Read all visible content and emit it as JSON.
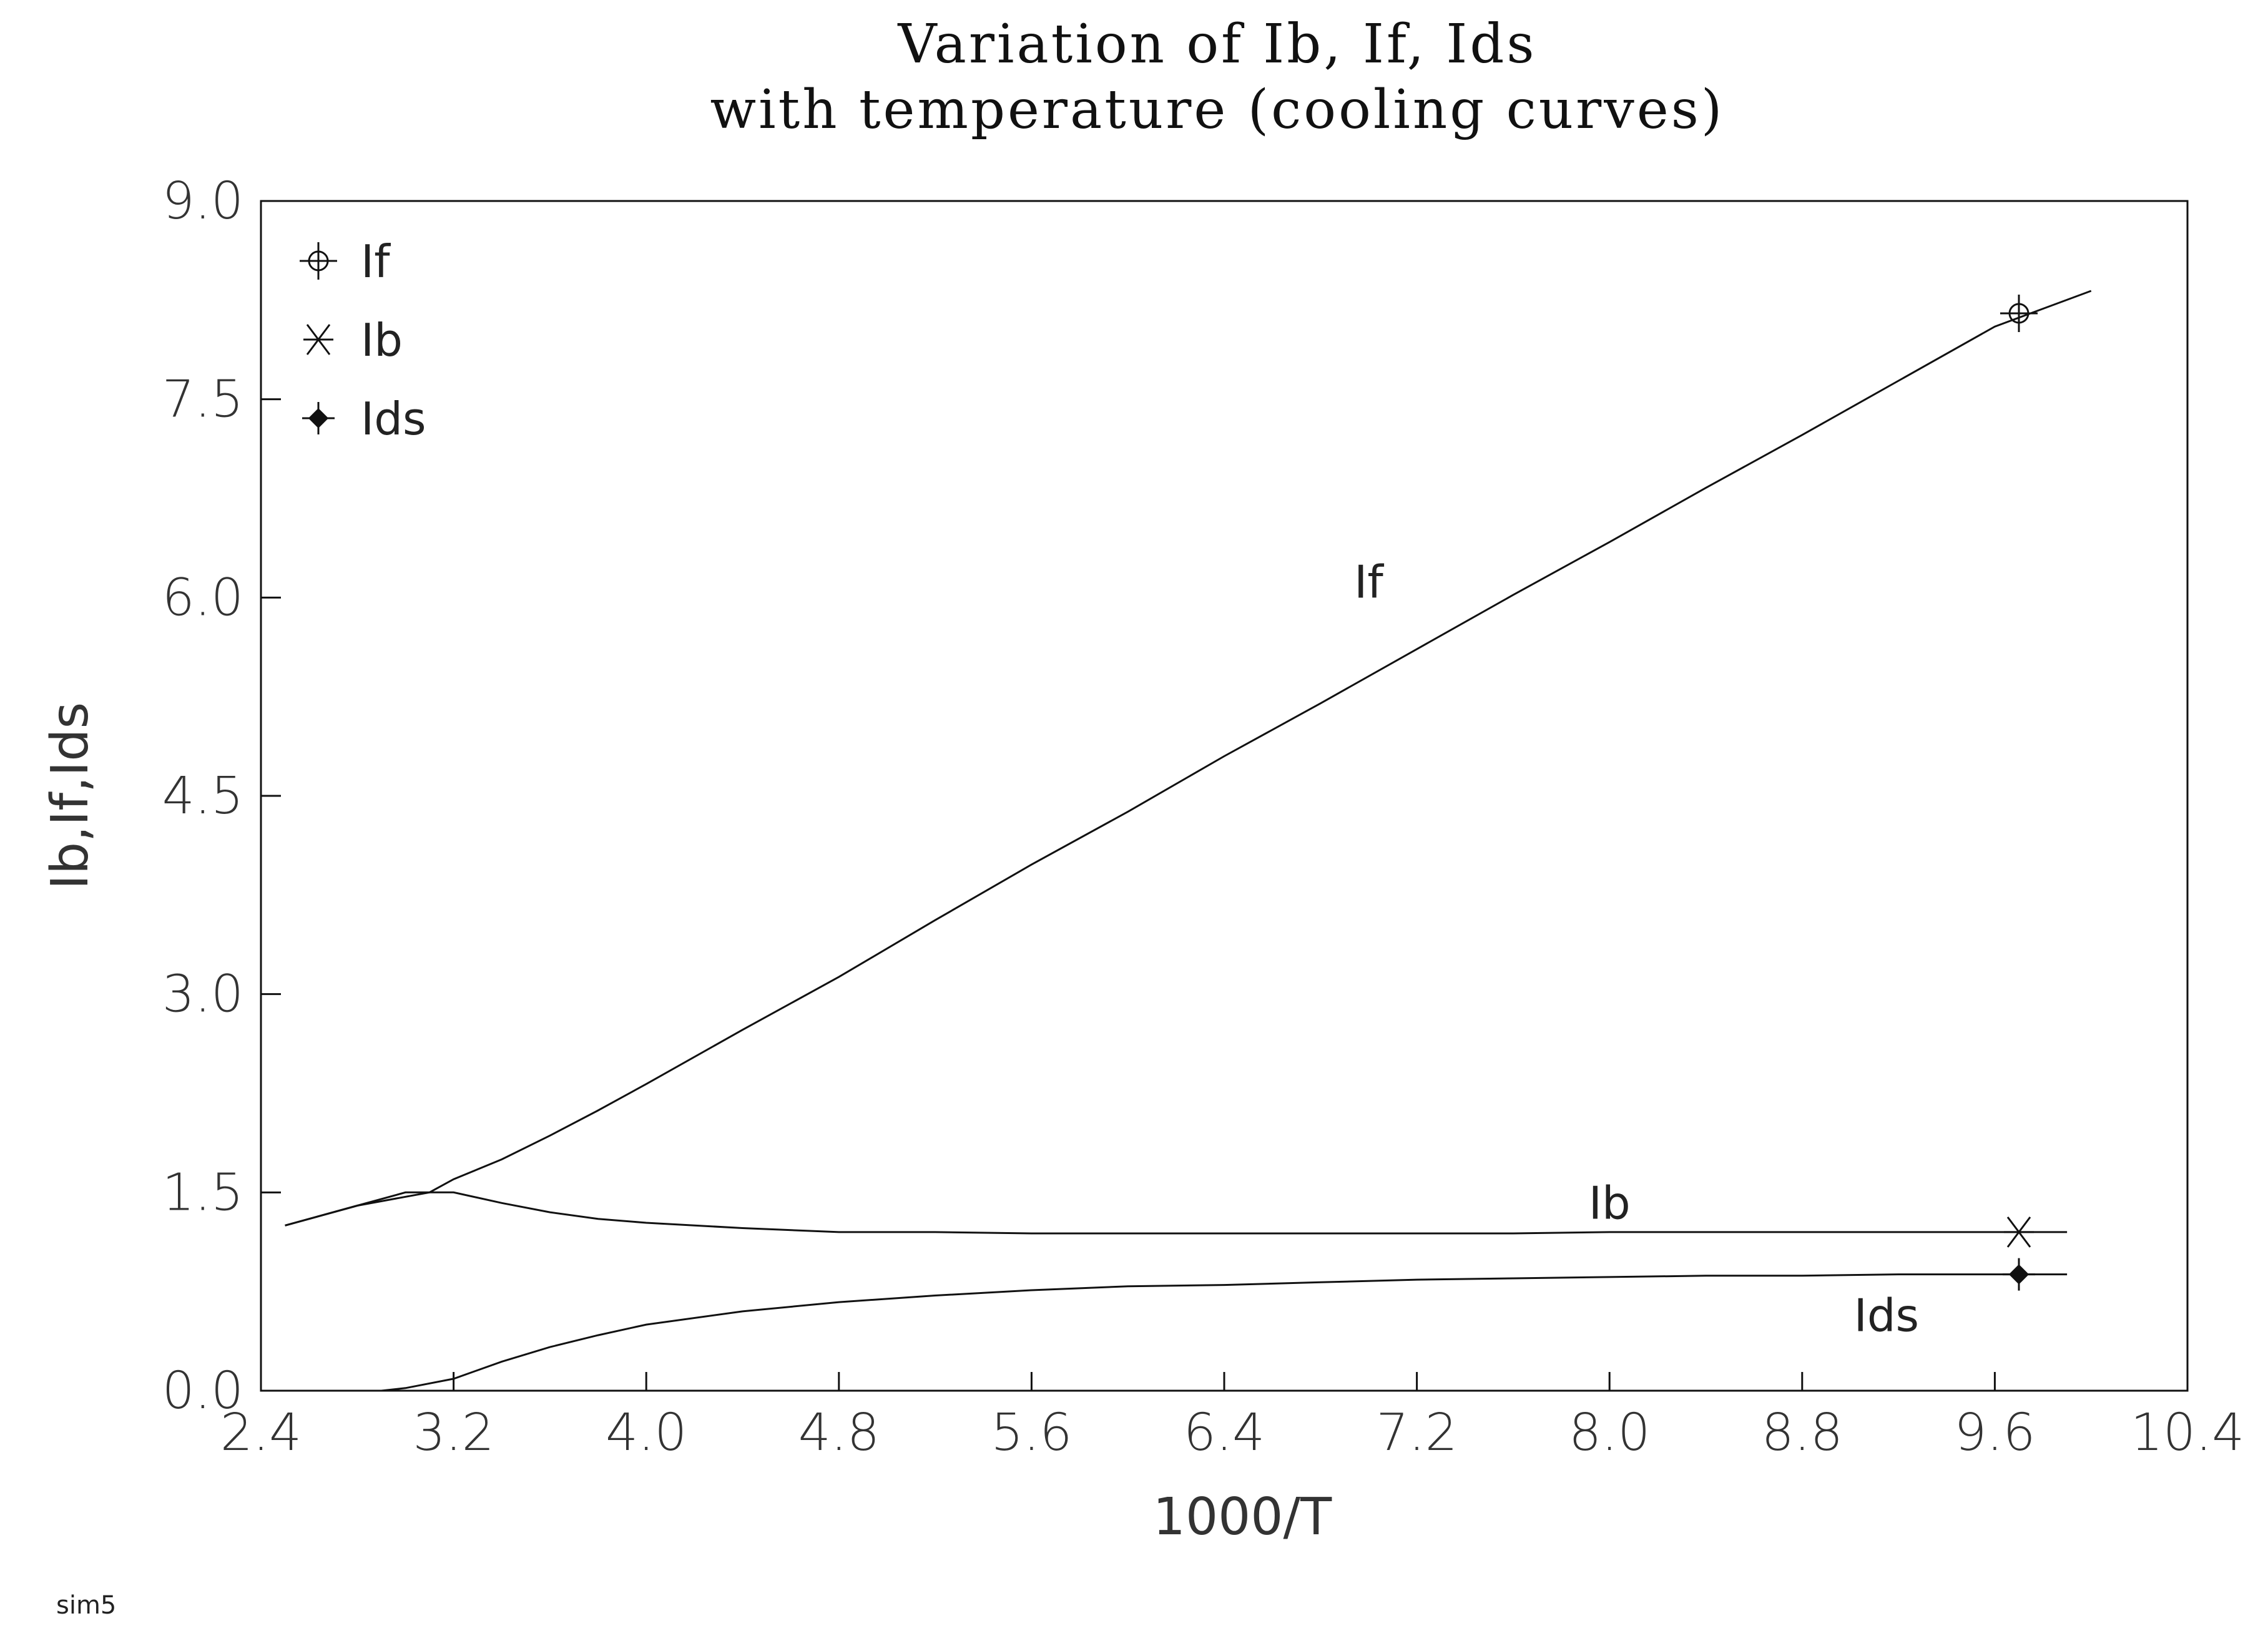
{
  "chart_data": {
    "type": "line",
    "title": "Variation of Ib, If, Ids",
    "subtitle": "with temperature (cooling curves)",
    "xlabel": "1000/T",
    "ylabel": "Ib,If,Ids",
    "xlim": [
      2.4,
      10.4
    ],
    "ylim": [
      0.0,
      9.0
    ],
    "xticks": [
      "2.4",
      "3.2",
      "4.0",
      "4.8",
      "5.6",
      "6.4",
      "7.2",
      "8.0",
      "8.8",
      "9.6",
      "10.4"
    ],
    "yticks": [
      "0.0",
      "1.5",
      "3.0",
      "4.5",
      "6.0",
      "7.5",
      "9.0"
    ],
    "grid": false,
    "legend_position": "top-left",
    "series": [
      {
        "name": "If",
        "marker": "circle-cross",
        "marker_point": [
          9.7,
          8.15
        ],
        "curve_label_pos": [
          7.0,
          6.0
        ],
        "x": [
          2.5,
          2.8,
          3.1,
          3.2,
          3.4,
          3.6,
          3.8,
          4.0,
          4.4,
          4.8,
          5.2,
          5.6,
          6.0,
          6.4,
          6.8,
          7.2,
          7.6,
          8.0,
          8.4,
          8.8,
          9.2,
          9.6,
          10.0
        ],
        "y": [
          1.25,
          1.4,
          1.5,
          1.6,
          1.75,
          1.93,
          2.12,
          2.32,
          2.73,
          3.13,
          3.56,
          3.98,
          4.38,
          4.8,
          5.2,
          5.61,
          6.02,
          6.42,
          6.83,
          7.23,
          7.64,
          8.05,
          8.32
        ]
      },
      {
        "name": "Ib",
        "marker": "asterisk",
        "marker_point": [
          9.7,
          1.2
        ],
        "curve_label_pos": [
          8.0,
          1.3
        ],
        "x": [
          2.5,
          2.8,
          3.0,
          3.2,
          3.4,
          3.6,
          3.8,
          4.0,
          4.4,
          4.8,
          5.2,
          5.6,
          6.0,
          6.4,
          6.8,
          7.2,
          7.6,
          8.0,
          8.4,
          8.8,
          9.2,
          9.6,
          9.9
        ],
        "y": [
          1.25,
          1.4,
          1.5,
          1.5,
          1.42,
          1.35,
          1.3,
          1.27,
          1.23,
          1.2,
          1.2,
          1.19,
          1.19,
          1.19,
          1.19,
          1.19,
          1.19,
          1.2,
          1.2,
          1.2,
          1.2,
          1.2,
          1.2
        ]
      },
      {
        "name": "Ids",
        "marker": "filled-diamond",
        "marker_point": [
          9.7,
          0.88
        ],
        "curve_label_pos": [
          9.15,
          0.45
        ],
        "x": [
          2.9,
          3.0,
          3.2,
          3.4,
          3.6,
          3.8,
          4.0,
          4.4,
          4.8,
          5.2,
          5.6,
          6.0,
          6.4,
          6.8,
          7.2,
          7.6,
          8.0,
          8.4,
          8.8,
          9.2,
          9.6,
          9.9
        ],
        "y": [
          0.0,
          0.02,
          0.09,
          0.22,
          0.33,
          0.42,
          0.5,
          0.6,
          0.67,
          0.72,
          0.76,
          0.79,
          0.8,
          0.82,
          0.84,
          0.85,
          0.86,
          0.87,
          0.87,
          0.88,
          0.88,
          0.88
        ]
      }
    ]
  },
  "footnote": "sim5"
}
